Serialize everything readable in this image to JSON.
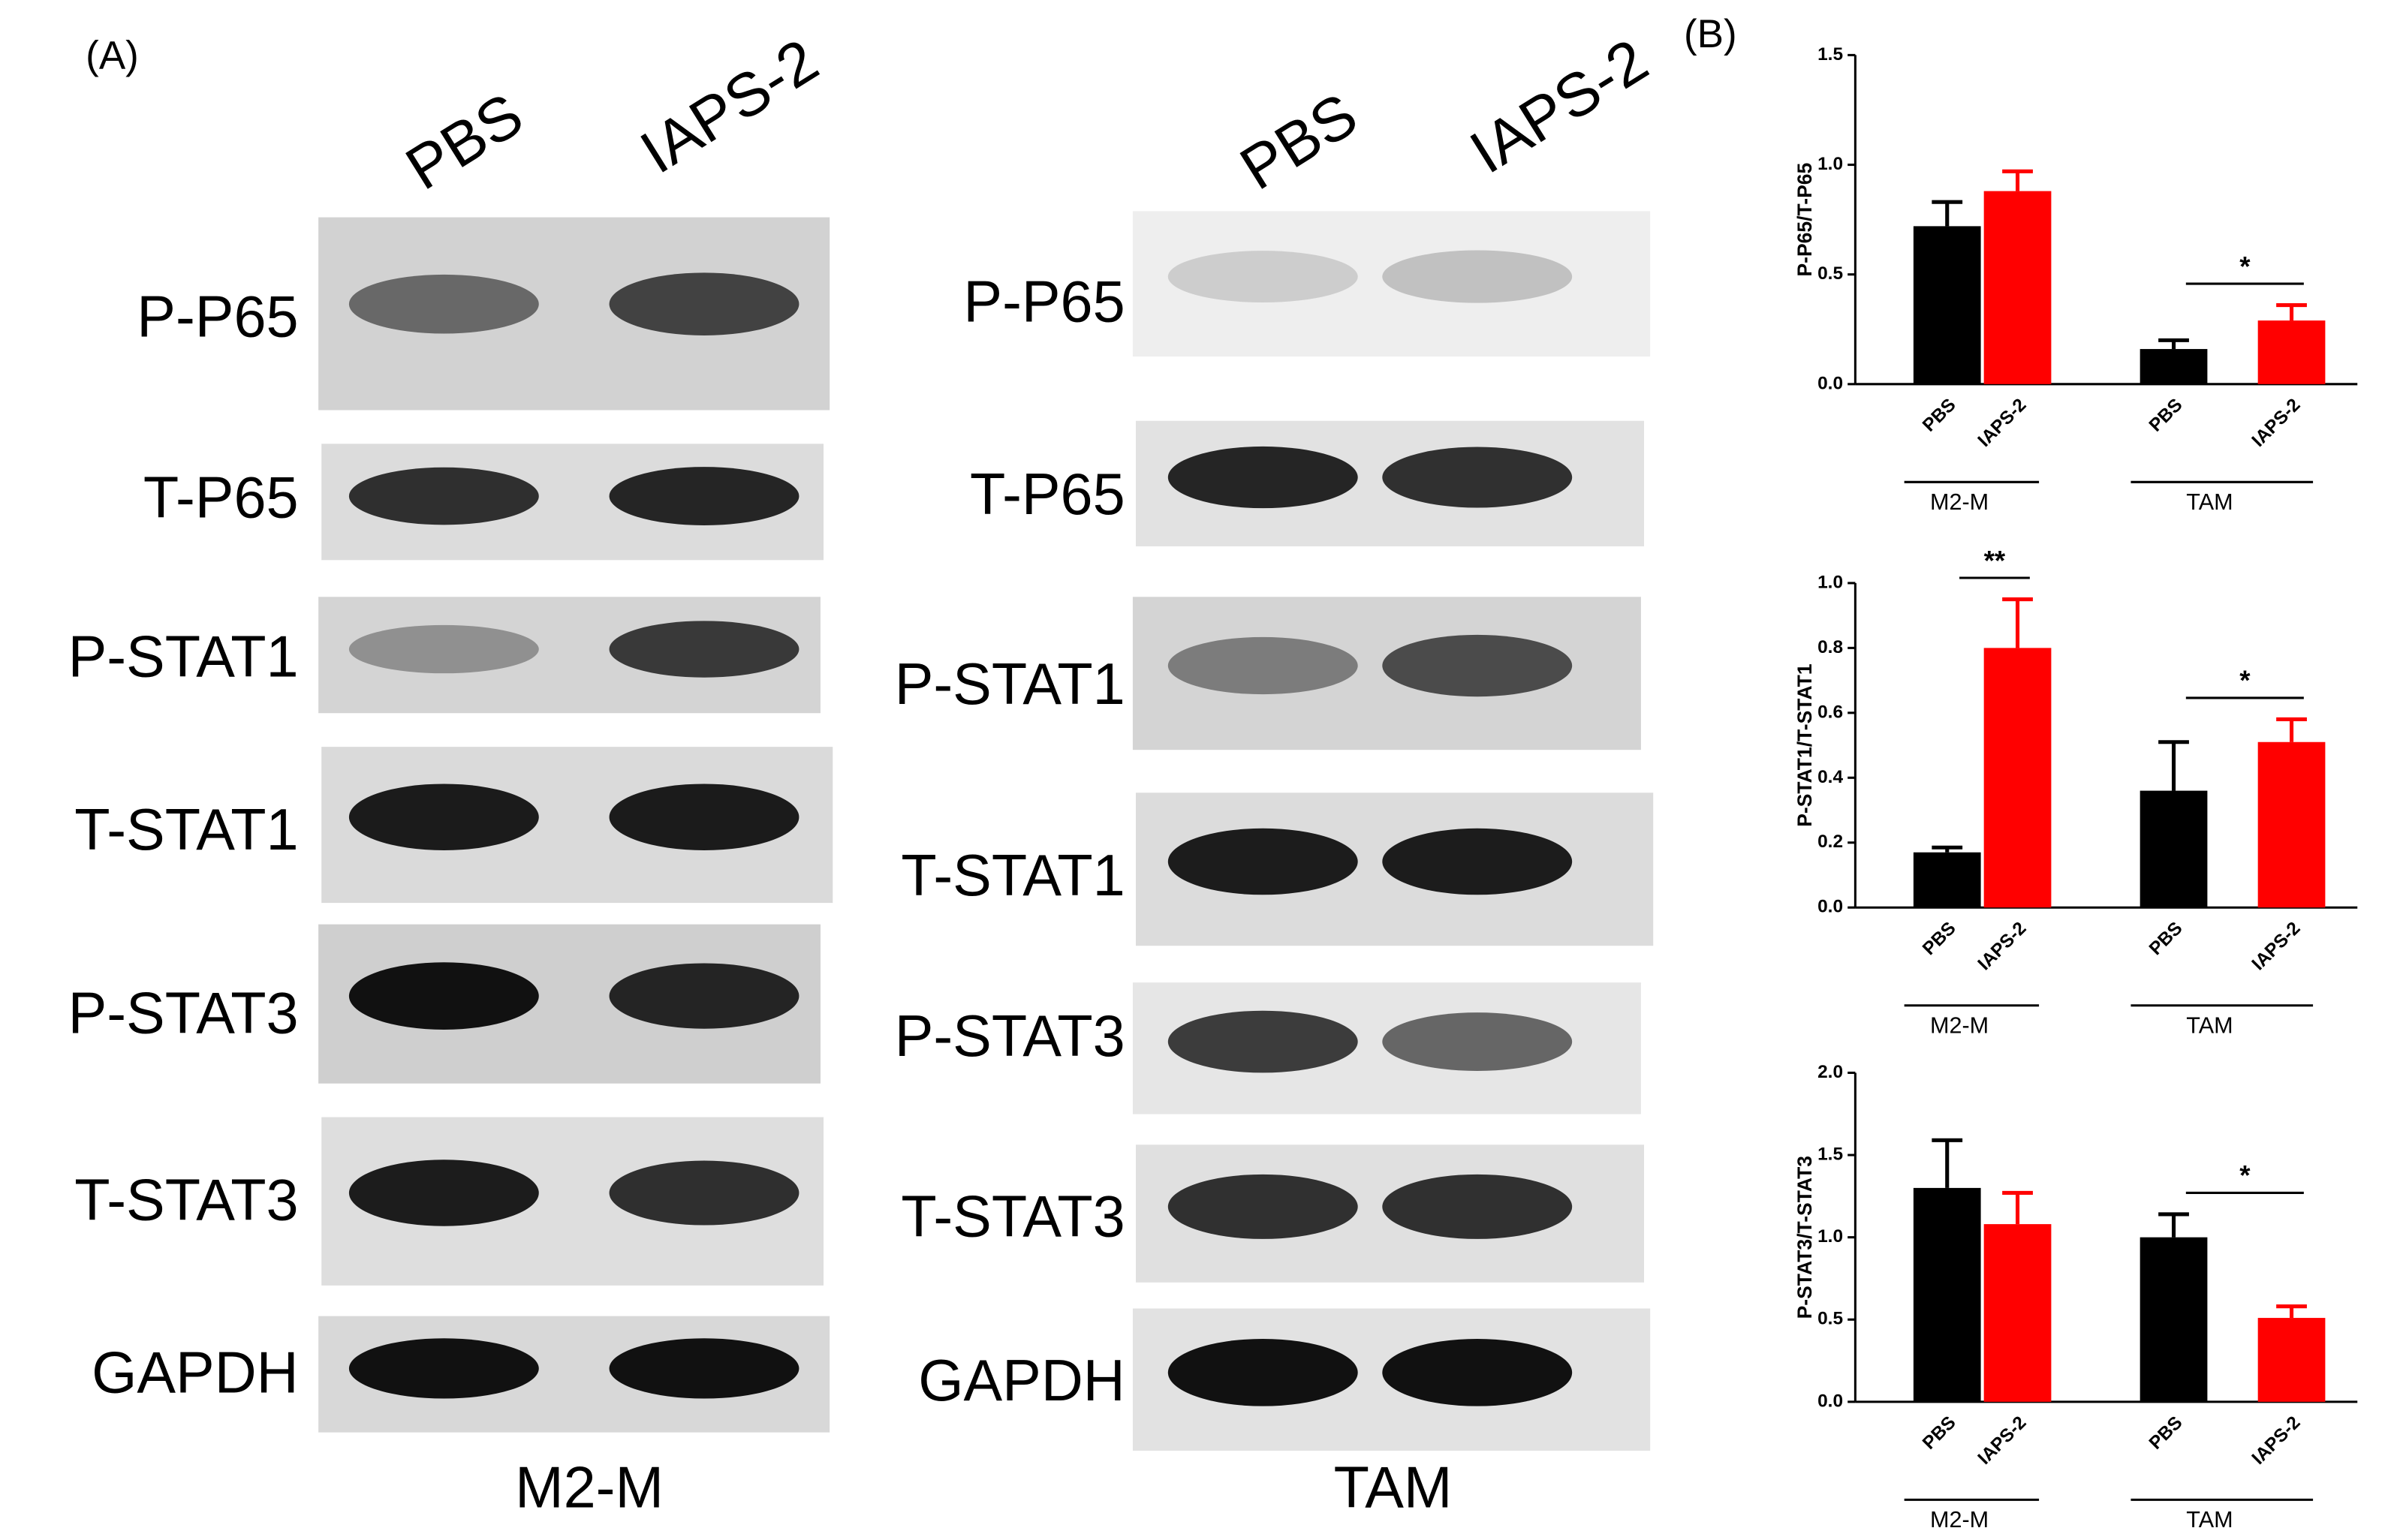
{
  "panel_a": {
    "label": "(A)",
    "lanes": [
      "PBS",
      "IAPS-2"
    ],
    "groups": [
      {
        "name": "M2-M",
        "rows": [
          "P-P65",
          "T-P65",
          "P-STAT1",
          "T-STAT1",
          "P-STAT3",
          "T-STAT3",
          "GAPDH"
        ]
      },
      {
        "name": "TAM",
        "rows": [
          "P-P65",
          "T-P65",
          "P-STAT1",
          "T-STAT1",
          "P-STAT3",
          "T-STAT3",
          "GAPDH"
        ]
      }
    ]
  },
  "panel_b": {
    "label": "(B)"
  },
  "chart_data": [
    {
      "type": "bar",
      "ylabel": "P-P65/T-P65",
      "categories": [
        "PBS",
        "IAPS-2",
        "PBS",
        "IAPS-2"
      ],
      "groups": [
        "M2-M",
        "TAM"
      ],
      "values": [
        0.72,
        0.88,
        0.16,
        0.29
      ],
      "errors": [
        0.11,
        0.09,
        0.04,
        0.07
      ],
      "colors": [
        "#000000",
        "#ff0000",
        "#000000",
        "#ff0000"
      ],
      "group_annotations": [
        null,
        "*"
      ],
      "ylim": [
        0,
        1.5
      ],
      "yticks": [
        {
          "value": 0,
          "label": "0.0"
        },
        {
          "value": 0.5,
          "label": "0.5"
        },
        {
          "value": 1,
          "label": "1.0"
        },
        {
          "value": 1.5,
          "label": "1.5"
        }
      ]
    },
    {
      "type": "bar",
      "ylabel": "P-STAT1/T-STAT1",
      "categories": [
        "PBS",
        "IAPS-2",
        "PBS",
        "IAPS-2"
      ],
      "groups": [
        "M2-M",
        "TAM"
      ],
      "values": [
        0.17,
        0.8,
        0.36,
        0.51
      ],
      "errors": [
        0.015,
        0.15,
        0.15,
        0.07
      ],
      "colors": [
        "#000000",
        "#ff0000",
        "#000000",
        "#ff0000"
      ],
      "group_annotations": [
        "**",
        "*"
      ],
      "ylim": [
        0,
        1
      ],
      "yticks": [
        {
          "value": 0,
          "label": "0.0"
        },
        0.2,
        0.4,
        0.6,
        0.8,
        {
          "value": 1,
          "label": "1.0"
        }
      ]
    },
    {
      "type": "bar",
      "ylabel": "P-STAT3/T-STAT3",
      "categories": [
        "PBS",
        "IAPS-2",
        "PBS",
        "IAPS-2"
      ],
      "groups": [
        "M2-M",
        "TAM"
      ],
      "values": [
        1.3,
        1.08,
        1.0,
        0.51
      ],
      "errors": [
        0.29,
        0.19,
        0.14,
        0.07
      ],
      "colors": [
        "#000000",
        "#ff0000",
        "#000000",
        "#ff0000"
      ],
      "group_annotations": [
        null,
        "*"
      ],
      "ylim": [
        0,
        2
      ],
      "yticks": [
        {
          "value": 0,
          "label": "0.0"
        },
        {
          "value": 0.5,
          "label": "0.5"
        },
        {
          "value": 1,
          "label": "1.0"
        },
        {
          "value": 1.5,
          "label": "1.5"
        },
        {
          "value": 2,
          "label": "2.0"
        }
      ]
    }
  ]
}
